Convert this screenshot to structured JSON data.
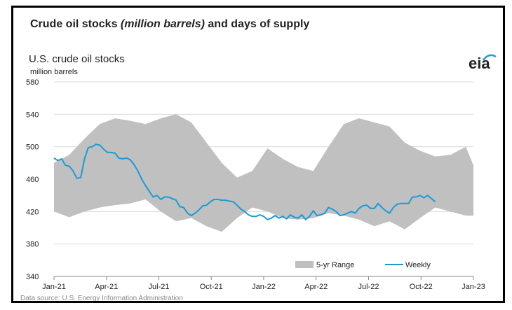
{
  "header": {
    "title_part1": "Crude oil stocks ",
    "title_italic": "(million barrels)",
    "title_part2": " and days of supply"
  },
  "chart_data": {
    "type": "area",
    "title": "U.S. crude oil stocks",
    "ylabel": "million barrels",
    "xlabel": "",
    "ylim": [
      340,
      580
    ],
    "yticks": [
      "340",
      "380",
      "420",
      "460",
      "500",
      "540",
      "580"
    ],
    "xticks": [
      "Jan-21",
      "Apr-21",
      "Jul-21",
      "Oct-21",
      "Jan-22",
      "Apr-22",
      "Jul-22",
      "Oct-22",
      "Jan-23"
    ],
    "xrange_weeks": [
      0,
      110
    ],
    "grid": true,
    "legend_position": "bottom-right",
    "legend": [
      "5-yr Range",
      "Weekly"
    ],
    "colors": {
      "range": "#c0c0c0",
      "weekly": "#1a9bd7",
      "grid": "#d9d9d9",
      "text": "#222222"
    },
    "logo": "eia",
    "source": "Data source: U.S. Energy Information Administration",
    "range_band": {
      "name": "5-yr Range",
      "x": [
        0,
        4,
        8,
        12,
        16,
        20,
        24,
        28,
        32,
        36,
        40,
        44,
        48,
        52,
        56,
        60,
        64,
        68,
        72,
        76,
        80,
        84,
        88,
        92,
        96,
        100,
        104,
        108,
        110
      ],
      "upper": [
        480,
        490,
        510,
        528,
        535,
        532,
        528,
        535,
        540,
        530,
        505,
        480,
        462,
        470,
        498,
        485,
        475,
        470,
        500,
        528,
        535,
        530,
        525,
        505,
        495,
        488,
        490,
        500,
        477
      ],
      "lower": [
        420,
        413,
        420,
        425,
        428,
        430,
        435,
        420,
        408,
        412,
        402,
        395,
        412,
        425,
        420,
        412,
        410,
        412,
        418,
        415,
        410,
        402,
        408,
        398,
        412,
        425,
        420,
        415,
        415
      ]
    },
    "series": [
      {
        "name": "Weekly",
        "x": [
          0,
          1,
          2,
          3,
          4,
          5,
          6,
          7,
          8,
          9,
          10,
          11,
          12,
          13,
          14,
          15,
          16,
          17,
          18,
          19,
          20,
          21,
          22,
          23,
          24,
          25,
          26,
          27,
          28,
          29,
          30,
          31,
          32,
          33,
          34,
          35,
          36,
          37,
          38,
          39,
          40,
          41,
          42,
          43,
          44,
          45,
          46,
          47,
          48,
          49,
          50,
          51,
          52,
          53,
          54,
          55,
          56,
          57,
          58,
          59,
          60,
          61,
          62,
          63,
          64,
          65,
          66,
          67,
          68,
          69,
          70,
          71,
          72,
          73,
          74,
          75,
          76,
          77,
          78,
          79,
          80,
          81,
          82,
          83,
          84,
          85,
          86,
          87,
          88,
          89,
          90,
          91,
          92,
          93,
          94,
          95,
          96,
          97,
          98,
          99,
          100
        ],
        "values": [
          486,
          483,
          485,
          477,
          476,
          470,
          461,
          462,
          485,
          499,
          500,
          503,
          502,
          497,
          493,
          493,
          492,
          486,
          485,
          486,
          484,
          478,
          470,
          460,
          452,
          445,
          438,
          440,
          435,
          438,
          438,
          436,
          434,
          426,
          425,
          418,
          415,
          418,
          422,
          427,
          428,
          432,
          435,
          435,
          434,
          434,
          433,
          432,
          428,
          423,
          420,
          416,
          414,
          414,
          416,
          414,
          410,
          412,
          415,
          412,
          414,
          411,
          416,
          413,
          412,
          416,
          410,
          414,
          421,
          415,
          416,
          418,
          425,
          423,
          420,
          415,
          416,
          418,
          420,
          418,
          424,
          427,
          428,
          424,
          424,
          430,
          425,
          421,
          418,
          425,
          429,
          430,
          430,
          430,
          438,
          438,
          440,
          437,
          440,
          436,
          432
        ]
      }
    ]
  }
}
